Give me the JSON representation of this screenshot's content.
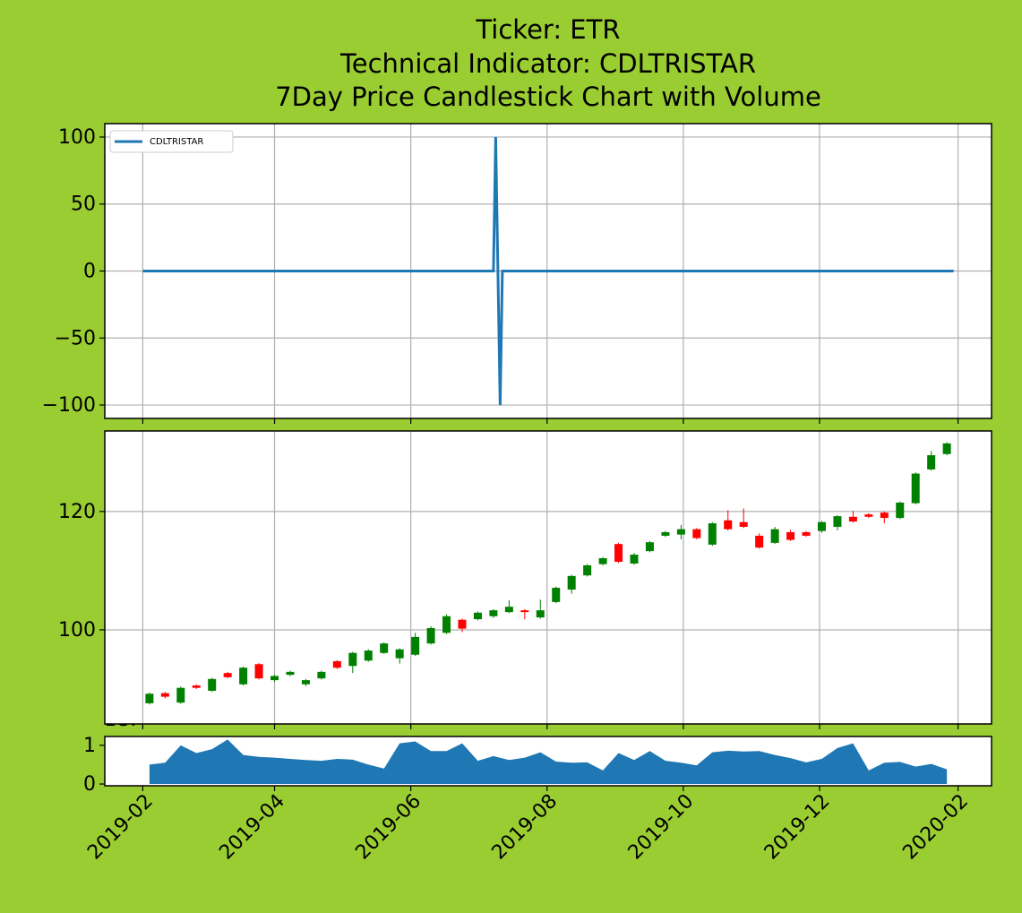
{
  "chart_data": [
    {
      "type": "line",
      "title": [
        "Ticker: ETR",
        "Technical Indicator: CDLTRISTAR",
        "7Day Price Candlestick Chart with Volume"
      ],
      "x": [
        "2019-02-01",
        "2019-07-08",
        "2019-07-09",
        "2019-07-10",
        "2019-07-11",
        "2019-07-12",
        "2020-01-30"
      ],
      "series": [
        {
          "name": "CDLTRISTAR",
          "color": "#1f77b4",
          "values": [
            0,
            0,
            100,
            0,
            -100,
            0,
            0
          ]
        }
      ],
      "ylim": [
        -110,
        110
      ],
      "yticks": [
        {
          "value": -100,
          "label": "−100"
        },
        {
          "value": -50,
          "label": "−50"
        },
        0,
        50,
        100
      ],
      "grid": true,
      "legend": "upper left"
    },
    {
      "type": "candlestick",
      "x": [
        "2019-02-04",
        "2019-02-11",
        "2019-02-18",
        "2019-02-25",
        "2019-03-04",
        "2019-03-11",
        "2019-03-18",
        "2019-03-25",
        "2019-04-01",
        "2019-04-08",
        "2019-04-15",
        "2019-04-22",
        "2019-04-29",
        "2019-05-06",
        "2019-05-13",
        "2019-05-20",
        "2019-05-27",
        "2019-06-03",
        "2019-06-10",
        "2019-06-17",
        "2019-06-24",
        "2019-07-01",
        "2019-07-08",
        "2019-07-15",
        "2019-07-22",
        "2019-07-29",
        "2019-08-05",
        "2019-08-12",
        "2019-08-19",
        "2019-08-26",
        "2019-09-02",
        "2019-09-09",
        "2019-09-16",
        "2019-09-23",
        "2019-09-30",
        "2019-10-07",
        "2019-10-14",
        "2019-10-21",
        "2019-10-28",
        "2019-11-04",
        "2019-11-11",
        "2019-11-18",
        "2019-11-25",
        "2019-12-02",
        "2019-12-09",
        "2019-12-16",
        "2019-12-23",
        "2019-12-30",
        "2020-01-06",
        "2020-01-13",
        "2020-01-20",
        "2020-01-27"
      ],
      "open": [
        87.6,
        89.3,
        87.7,
        90.6,
        89.7,
        92.7,
        90.8,
        94.2,
        91.5,
        92.4,
        90.8,
        91.8,
        94.7,
        93.9,
        94.8,
        96.1,
        95.2,
        95.8,
        97.7,
        99.5,
        101.7,
        101.8,
        102.3,
        103.0,
        103.3,
        102.1,
        104.7,
        106.8,
        109.2,
        111.1,
        114.5,
        111.2,
        113.3,
        115.9,
        116.1,
        117.0,
        114.4,
        118.5,
        118.2,
        115.9,
        114.7,
        116.5,
        116.5,
        116.7,
        117.4,
        119.1,
        119.5,
        119.8,
        118.9,
        121.4,
        127.1,
        129.7
      ],
      "high": [
        89.4,
        89.5,
        90.4,
        90.8,
        91.9,
        92.9,
        93.8,
        94.4,
        92.4,
        93.1,
        91.7,
        93.1,
        94.9,
        96.3,
        96.7,
        97.9,
        96.9,
        99.5,
        100.6,
        102.6,
        101.9,
        103.1,
        103.5,
        105.0,
        103.5,
        105.1,
        107.3,
        109.3,
        111.1,
        112.3,
        114.7,
        113.0,
        115.0,
        116.7,
        117.7,
        117.2,
        118.2,
        120.2,
        120.5,
        116.3,
        117.4,
        116.9,
        116.7,
        118.4,
        119.4,
        120.1,
        119.7,
        120.0,
        121.7,
        126.6,
        130.2,
        131.7
      ],
      "low": [
        87.4,
        88.4,
        87.5,
        90.0,
        89.5,
        91.8,
        90.6,
        91.6,
        91.2,
        92.2,
        90.5,
        91.6,
        93.4,
        92.7,
        94.6,
        95.9,
        94.3,
        95.6,
        97.5,
        99.3,
        99.6,
        101.6,
        102.0,
        102.8,
        101.8,
        101.9,
        104.5,
        106.1,
        109.0,
        110.9,
        111.3,
        111.0,
        113.1,
        115.7,
        115.3,
        115.3,
        114.2,
        116.8,
        117.2,
        113.7,
        114.5,
        115.0,
        115.7,
        116.4,
        116.8,
        118.1,
        118.9,
        118.0,
        118.7,
        121.2,
        126.9,
        129.5
      ],
      "close": [
        89.2,
        88.7,
        90.2,
        90.2,
        91.7,
        92.0,
        93.6,
        91.8,
        92.2,
        92.9,
        91.5,
        92.9,
        93.6,
        96.1,
        96.5,
        97.7,
        96.7,
        98.8,
        100.3,
        102.3,
        100.2,
        102.9,
        103.3,
        103.9,
        103.0,
        103.3,
        107.1,
        109.1,
        110.9,
        112.1,
        111.5,
        112.7,
        114.8,
        116.5,
        117.0,
        115.5,
        118.0,
        117.0,
        117.4,
        113.9,
        117.0,
        115.2,
        115.9,
        118.2,
        119.2,
        118.3,
        119.1,
        118.9,
        121.5,
        126.4,
        129.5,
        131.5
      ],
      "up_color": "green",
      "down_color": "red",
      "ylim": [
        84.1,
        133.6
      ],
      "yticks": [
        100,
        120
      ],
      "grid": true
    },
    {
      "type": "area",
      "offset_text": "1e7",
      "color": "#1f77b4",
      "values": [
        5000000,
        5500000,
        10000000,
        8000000,
        9000000,
        11500000,
        7500000,
        7000000,
        6800000,
        6500000,
        6200000,
        6000000,
        6500000,
        6300000,
        5000000,
        4000000,
        10500000,
        11000000,
        8500000,
        8500000,
        10500000,
        6000000,
        7200000,
        6200000,
        6800000,
        8200000,
        5800000,
        5500000,
        5600000,
        3500000,
        8000000,
        6200000,
        8500000,
        6000000,
        5500000,
        4800000,
        8200000,
        8600000,
        8400000,
        8500000,
        7500000,
        6700000,
        5600000,
        6500000,
        9300000,
        10500000,
        3500000,
        5500000,
        5700000,
        4500000,
        5200000,
        3800000
      ],
      "ylim": [
        -450000,
        12270000
      ],
      "yticks": [
        0,
        {
          "value": 10000000,
          "label": "1"
        }
      ],
      "xlim": [
        "2019-01-15",
        "2020-02-16"
      ],
      "xticks": [
        "2019-02",
        "2019-04",
        "2019-06",
        "2019-08",
        "2019-10",
        "2019-12",
        "2020-02"
      ]
    }
  ]
}
